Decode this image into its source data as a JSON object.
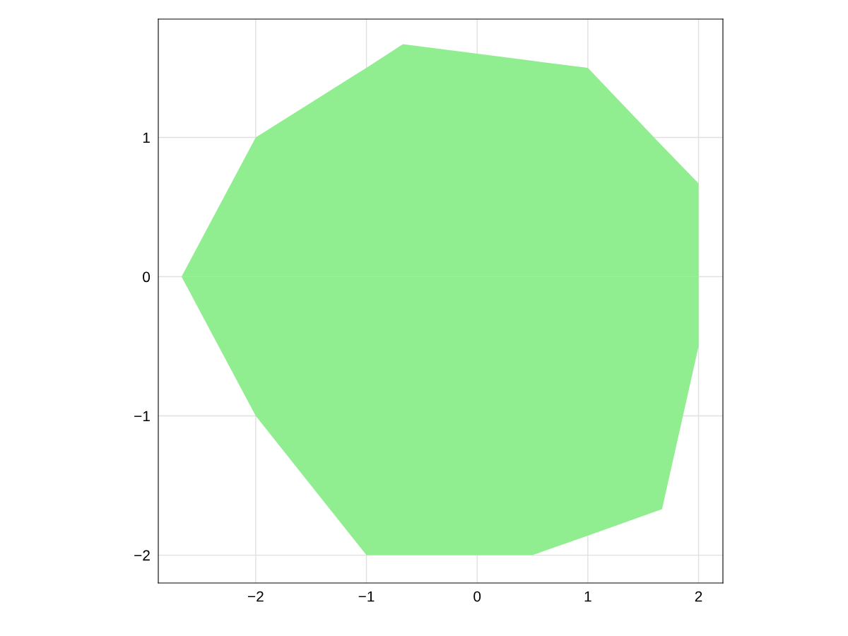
{
  "chart_data": {
    "type": "area",
    "series": [
      {
        "type": "area",
        "color": "#90ee90",
        "x": [
          -2.67,
          -2,
          -1,
          -0.67,
          0.5,
          1,
          1.67,
          2
        ],
        "values": [
          0,
          1,
          1.5,
          1.67,
          1.55,
          1.5,
          0.94,
          0.67
        ]
      },
      {
        "type": "area",
        "color": "#90ee90",
        "x": [
          -2.67,
          -2,
          -1,
          -0.67,
          0.5,
          1,
          1.67,
          2
        ],
        "values": [
          0,
          -1,
          -2,
          -2,
          -2,
          -1.86,
          -1.67,
          -0.5
        ]
      }
    ],
    "xlim": [
      -2.88,
      2.22
    ],
    "ylim": [
      -2.2,
      1.85
    ],
    "xticks": [
      {
        "value": -2,
        "label": "−2"
      },
      {
        "value": -1,
        "label": "−1"
      },
      0,
      1,
      2
    ],
    "yticks": [
      {
        "value": -2,
        "label": "−2"
      },
      {
        "value": -1,
        "label": "−1"
      },
      0,
      1
    ],
    "grid": true
  }
}
